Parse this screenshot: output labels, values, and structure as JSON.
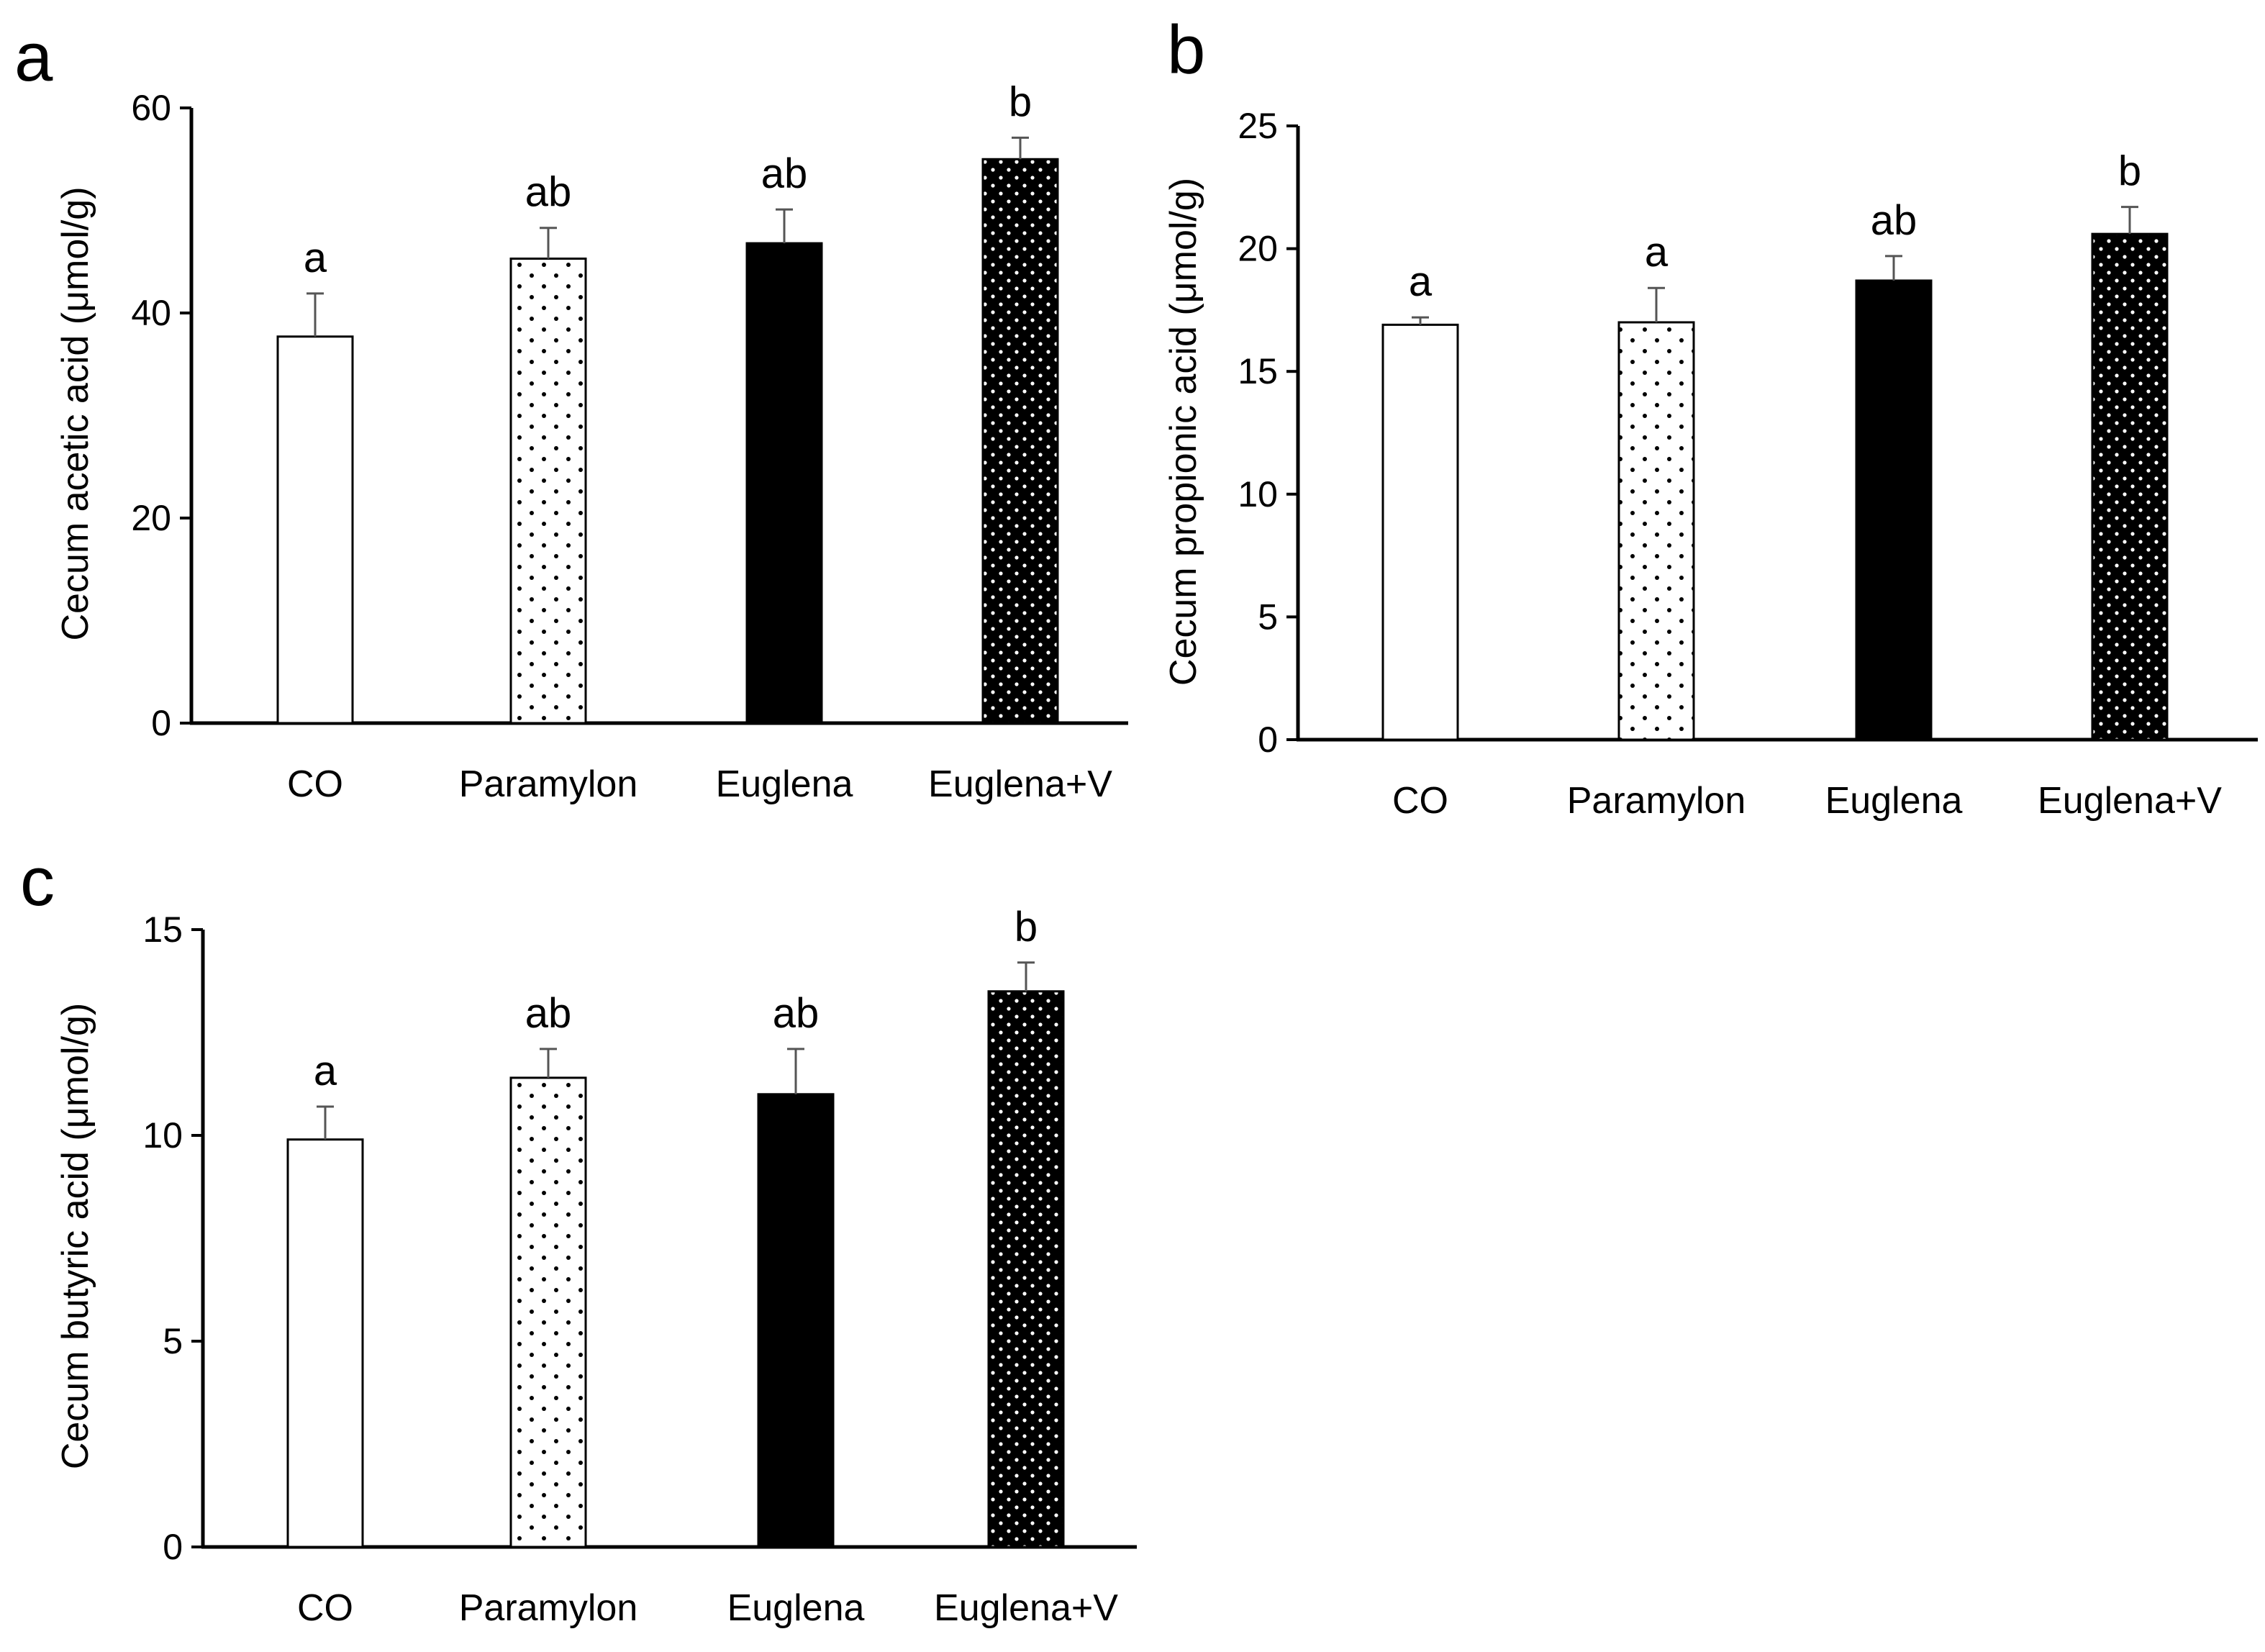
{
  "chart_data": [
    {
      "type": "bar",
      "panel": "a",
      "categories": [
        "CO",
        "Paramylon",
        "Euglena",
        "Euglena+V"
      ],
      "values": [
        37.7,
        45.3,
        46.8,
        55.0
      ],
      "errors": [
        4.2,
        3.0,
        3.3,
        2.1
      ],
      "significance": [
        "a",
        "ab",
        "ab",
        "b"
      ],
      "ylabel": "Cecum acetic acid (μmol/g)",
      "xlabel": "",
      "ylim": [
        0,
        60
      ],
      "yticks": [
        0,
        20,
        40,
        60
      ],
      "grid": false
    },
    {
      "type": "bar",
      "panel": "b",
      "categories": [
        "CO",
        "Paramylon",
        "Euglena",
        "Euglena+V"
      ],
      "values": [
        16.9,
        17.0,
        18.7,
        20.6
      ],
      "errors": [
        0.3,
        1.4,
        1.0,
        1.1
      ],
      "significance": [
        "a",
        "a",
        "ab",
        "b"
      ],
      "ylabel": "Cecum propionic acid (μmol/g)",
      "xlabel": "",
      "ylim": [
        0,
        25
      ],
      "yticks": [
        0,
        5,
        10,
        15,
        20,
        25
      ],
      "grid": false
    },
    {
      "type": "bar",
      "panel": "c",
      "categories": [
        "CO",
        "Paramylon",
        "Euglena",
        "Euglena+V"
      ],
      "values": [
        9.9,
        11.4,
        11.0,
        13.5
      ],
      "errors": [
        0.8,
        0.7,
        1.1,
        0.7
      ],
      "significance": [
        "a",
        "ab",
        "ab",
        "b"
      ],
      "ylabel": "Cecum butyric acid (μmol/g)",
      "xlabel": "",
      "ylim": [
        0,
        15
      ],
      "yticks": [
        0,
        5,
        10,
        15
      ],
      "grid": false
    }
  ],
  "bar_styles": [
    "open",
    "sparse-dots",
    "solid",
    "dense-dots"
  ],
  "colors": {
    "ink": "#000000",
    "background": "#ffffff",
    "errorbar": "#555555"
  }
}
